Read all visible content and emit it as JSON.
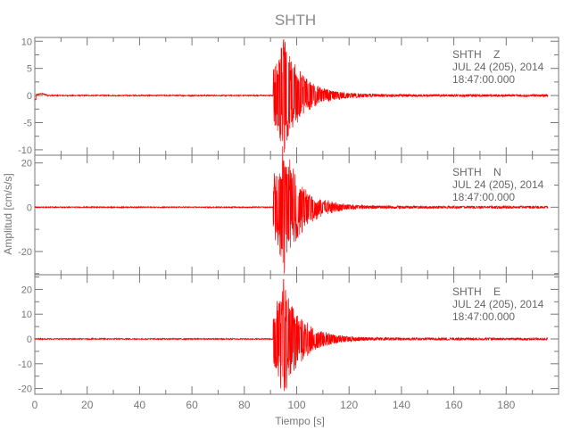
{
  "chart_data": {
    "type": "line",
    "title": "SHTH",
    "xlabel": "Tiempo [s]",
    "ylabel": "Amplitud [cm/s/s]",
    "xlim": [
      0,
      200
    ],
    "xticks": [
      0,
      20,
      40,
      60,
      80,
      100,
      120,
      140,
      160,
      180
    ],
    "x_minor_step": 10,
    "grid": false,
    "color": "#ff0000",
    "panels": [
      {
        "component": "Z",
        "station_label": "SHTH    Z",
        "date_label": "JUL 24 (205), 2014",
        "time_label": "18:47:00.000",
        "ylim": [
          -11,
          10.7
        ],
        "yticks": [
          10,
          5,
          0,
          -5,
          -10
        ],
        "onset_s": 91,
        "peak_s": 95,
        "peak_max": 10.3,
        "peak_min": -10.5,
        "duration_s": 196
      },
      {
        "component": "N",
        "station_label": "SHTH    N",
        "date_label": "JUL 24 (205), 2014",
        "time_label": "18:47:00.000",
        "ylim": [
          -30.5,
          23.5
        ],
        "yticks": [
          20,
          0,
          -20
        ],
        "onset_s": 91,
        "peak_s": 95,
        "peak_max": 21,
        "peak_min": -30,
        "duration_s": 196
      },
      {
        "component": "E",
        "station_label": "SHTH    E",
        "date_label": "JUL 24 (205), 2014",
        "time_label": "18:47:00.000",
        "ylim": [
          -22.3,
          25.9
        ],
        "yticks": [
          20,
          10,
          0,
          -10,
          -20
        ],
        "onset_s": 91,
        "peak_s": 95,
        "peak_max": 24,
        "peak_min": -21,
        "duration_s": 196
      }
    ]
  }
}
